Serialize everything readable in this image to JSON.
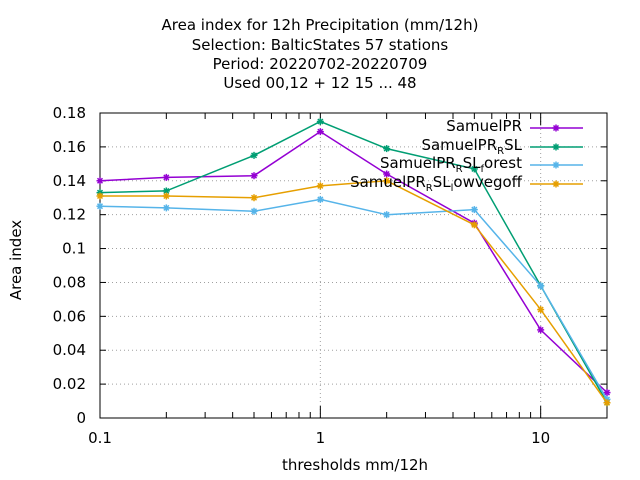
{
  "title_lines": [
    "Area index  for 12h Precipitation (mm/12h)",
    "Selection: BalticStates      57 stations",
    "Period: 20220702-20220709",
    "Used  00,12  + 12 15 ... 48"
  ],
  "chart_data": {
    "type": "line",
    "xscale": "log",
    "xlabel": "thresholds mm/12h",
    "ylabel": "Area index",
    "xlim": [
      0.1,
      20
    ],
    "ylim": [
      0,
      0.18
    ],
    "xticks": [
      0.1,
      1,
      10
    ],
    "xtick_labels": [
      "0.1",
      "1",
      "10"
    ],
    "yticks": [
      0,
      0.02,
      0.04,
      0.06,
      0.08,
      0.1,
      0.12,
      0.14,
      0.16,
      0.18
    ],
    "ytick_labels": [
      "0",
      "0.02",
      "0.04",
      "0.06",
      "0.08",
      "0.1",
      "0.12",
      "0.14",
      "0.16",
      "0.18"
    ],
    "grid": true,
    "legend_position": "top-right",
    "x": [
      0.1,
      0.2,
      0.5,
      1,
      2,
      5,
      10,
      20
    ],
    "series": [
      {
        "name": "SamuelPR",
        "name_main": "SamuelPR",
        "name_sub": "",
        "name_tail": "",
        "color": "#9400d3",
        "values": [
          0.14,
          0.142,
          0.143,
          0.169,
          0.144,
          0.115,
          0.052,
          0.015
        ]
      },
      {
        "name": "SamuelPR_RSL",
        "name_main": "SamuelPR",
        "name_sub": "R",
        "name_tail": "SL",
        "color": "#009e73",
        "values": [
          0.133,
          0.134,
          0.155,
          0.175,
          0.159,
          0.147,
          0.078,
          0.009
        ]
      },
      {
        "name": "SamuelPR_RSL_forest",
        "name_main": "SamuelPR",
        "name_sub": "R",
        "name_tail": "SL",
        "name_sub2": "f",
        "name_tail2": "orest",
        "color": "#56b4e9",
        "values": [
          0.125,
          0.124,
          0.122,
          0.129,
          0.12,
          0.123,
          0.078,
          0.011
        ]
      },
      {
        "name": "SamuelPR_RSL_lowvegoff",
        "name_main": "SamuelPR",
        "name_sub": "R",
        "name_tail": "SL",
        "name_sub2": "l",
        "name_tail2": "owvegoff",
        "color": "#e69f00",
        "values": [
          0.131,
          0.131,
          0.13,
          0.137,
          0.14,
          0.114,
          0.064,
          0.009
        ]
      }
    ]
  }
}
